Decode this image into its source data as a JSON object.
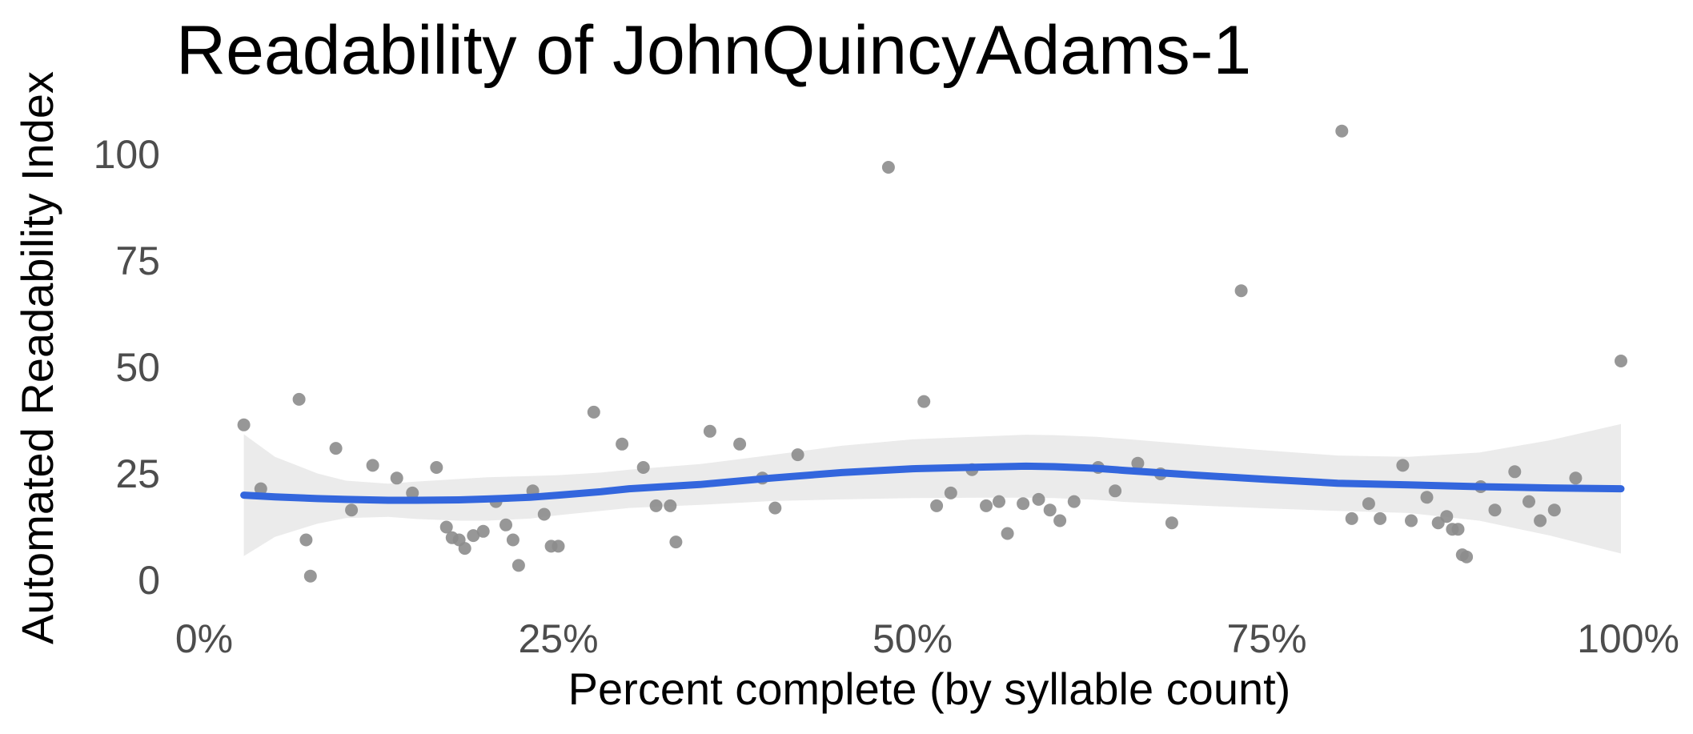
{
  "chart_data": {
    "type": "scatter",
    "title": "Readability of JohnQuincyAdams-1",
    "xlabel": "Percent complete (by syllable count)",
    "ylabel": "Automated Readability Index",
    "xlim": [
      0,
      100
    ],
    "ylim": [
      -4,
      110
    ],
    "x_ticks": [
      0,
      25,
      50,
      75,
      100
    ],
    "x_tick_labels": [
      "0%",
      "25%",
      "50%",
      "75%",
      "100%"
    ],
    "y_ticks": [
      0,
      25,
      50,
      75,
      100
    ],
    "y_tick_labels": [
      "0",
      "25",
      "50",
      "75",
      "100"
    ],
    "grid": false,
    "legend": "none",
    "colors": {
      "points": "#8c8c8c",
      "smooth_line": "#3366dd",
      "confidence_band": "#ebebeb",
      "text": "#4d4d4d",
      "title": "#000000"
    },
    "points": [
      {
        "x": 2.8,
        "y": 36.5
      },
      {
        "x": 4.0,
        "y": 21.5
      },
      {
        "x": 6.7,
        "y": 42.5
      },
      {
        "x": 7.2,
        "y": 9.5
      },
      {
        "x": 7.5,
        "y": 1.0
      },
      {
        "x": 9.3,
        "y": 31.0
      },
      {
        "x": 10.4,
        "y": 16.5
      },
      {
        "x": 11.9,
        "y": 27.0
      },
      {
        "x": 13.6,
        "y": 24.0
      },
      {
        "x": 14.7,
        "y": 20.5
      },
      {
        "x": 16.4,
        "y": 26.5
      },
      {
        "x": 17.1,
        "y": 12.5
      },
      {
        "x": 17.5,
        "y": 10.0
      },
      {
        "x": 18.0,
        "y": 9.5
      },
      {
        "x": 18.4,
        "y": 7.5
      },
      {
        "x": 19.0,
        "y": 10.5
      },
      {
        "x": 19.7,
        "y": 11.5
      },
      {
        "x": 20.6,
        "y": 18.5
      },
      {
        "x": 21.3,
        "y": 13.0
      },
      {
        "x": 21.8,
        "y": 9.5
      },
      {
        "x": 22.2,
        "y": 3.5
      },
      {
        "x": 23.2,
        "y": 21.0
      },
      {
        "x": 24.0,
        "y": 15.5
      },
      {
        "x": 24.5,
        "y": 8.0
      },
      {
        "x": 25.0,
        "y": 8.0
      },
      {
        "x": 27.5,
        "y": 39.5
      },
      {
        "x": 29.5,
        "y": 32.0
      },
      {
        "x": 31.0,
        "y": 26.5
      },
      {
        "x": 31.9,
        "y": 17.5
      },
      {
        "x": 32.9,
        "y": 17.5
      },
      {
        "x": 33.3,
        "y": 9.0
      },
      {
        "x": 35.7,
        "y": 35.0
      },
      {
        "x": 37.8,
        "y": 32.0
      },
      {
        "x": 39.4,
        "y": 24.0
      },
      {
        "x": 40.3,
        "y": 17.0
      },
      {
        "x": 41.9,
        "y": 29.5
      },
      {
        "x": 48.3,
        "y": 97.0
      },
      {
        "x": 50.8,
        "y": 42.0
      },
      {
        "x": 51.7,
        "y": 17.5
      },
      {
        "x": 52.7,
        "y": 20.5
      },
      {
        "x": 54.2,
        "y": 26.0
      },
      {
        "x": 55.2,
        "y": 17.5
      },
      {
        "x": 56.1,
        "y": 18.5
      },
      {
        "x": 56.7,
        "y": 11.0
      },
      {
        "x": 57.8,
        "y": 18.0
      },
      {
        "x": 58.9,
        "y": 19.0
      },
      {
        "x": 59.7,
        "y": 16.5
      },
      {
        "x": 60.4,
        "y": 14.0
      },
      {
        "x": 61.4,
        "y": 18.5
      },
      {
        "x": 63.1,
        "y": 26.5
      },
      {
        "x": 64.3,
        "y": 21.0
      },
      {
        "x": 65.9,
        "y": 27.5
      },
      {
        "x": 67.5,
        "y": 25.0
      },
      {
        "x": 68.3,
        "y": 13.5
      },
      {
        "x": 73.2,
        "y": 68.0
      },
      {
        "x": 80.3,
        "y": 105.5
      },
      {
        "x": 81.0,
        "y": 14.5
      },
      {
        "x": 82.2,
        "y": 18.0
      },
      {
        "x": 83.0,
        "y": 14.5
      },
      {
        "x": 84.6,
        "y": 27.0
      },
      {
        "x": 85.2,
        "y": 14.0
      },
      {
        "x": 86.3,
        "y": 19.5
      },
      {
        "x": 87.1,
        "y": 13.5
      },
      {
        "x": 87.7,
        "y": 15.0
      },
      {
        "x": 88.1,
        "y": 12.0
      },
      {
        "x": 88.5,
        "y": 12.0
      },
      {
        "x": 88.8,
        "y": 6.0
      },
      {
        "x": 89.1,
        "y": 5.5
      },
      {
        "x": 90.1,
        "y": 22.0
      },
      {
        "x": 91.1,
        "y": 16.5
      },
      {
        "x": 92.5,
        "y": 25.5
      },
      {
        "x": 93.5,
        "y": 18.5
      },
      {
        "x": 94.3,
        "y": 14.0
      },
      {
        "x": 95.3,
        "y": 16.5
      },
      {
        "x": 96.8,
        "y": 24.0
      },
      {
        "x": 100.0,
        "y": 51.5
      }
    ],
    "smooth": {
      "x": [
        2.8,
        5,
        8,
        10,
        13,
        15,
        18,
        20,
        23,
        25,
        28,
        30,
        35,
        40,
        45,
        50,
        55,
        58,
        60,
        63,
        65,
        70,
        75,
        80,
        85,
        90,
        95,
        100
      ],
      "y": [
        20.0,
        19.6,
        19.2,
        19.0,
        18.8,
        18.8,
        18.9,
        19.1,
        19.5,
        20.0,
        20.8,
        21.5,
        22.5,
        24.0,
        25.3,
        26.2,
        26.6,
        26.8,
        26.7,
        26.3,
        25.8,
        24.7,
        23.7,
        22.8,
        22.4,
        22.0,
        21.7,
        21.5
      ],
      "lower": [
        5.7,
        10.2,
        13.3,
        14.6,
        14.9,
        14.4,
        14.0,
        14.0,
        14.5,
        15.3,
        16.3,
        17.0,
        17.7,
        18.6,
        19.0,
        19.3,
        19.4,
        19.4,
        19.3,
        18.9,
        18.4,
        17.6,
        16.9,
        16.3,
        15.8,
        14.0,
        10.5,
        6.3
      ],
      "upper": [
        34.3,
        29.0,
        25.1,
        23.4,
        22.7,
        23.2,
        23.8,
        24.2,
        24.5,
        24.7,
        25.3,
        26.0,
        27.3,
        29.4,
        31.6,
        33.1,
        33.8,
        34.2,
        34.1,
        33.7,
        33.2,
        31.8,
        30.5,
        29.3,
        29.0,
        30.0,
        32.9,
        36.7
      ]
    }
  }
}
